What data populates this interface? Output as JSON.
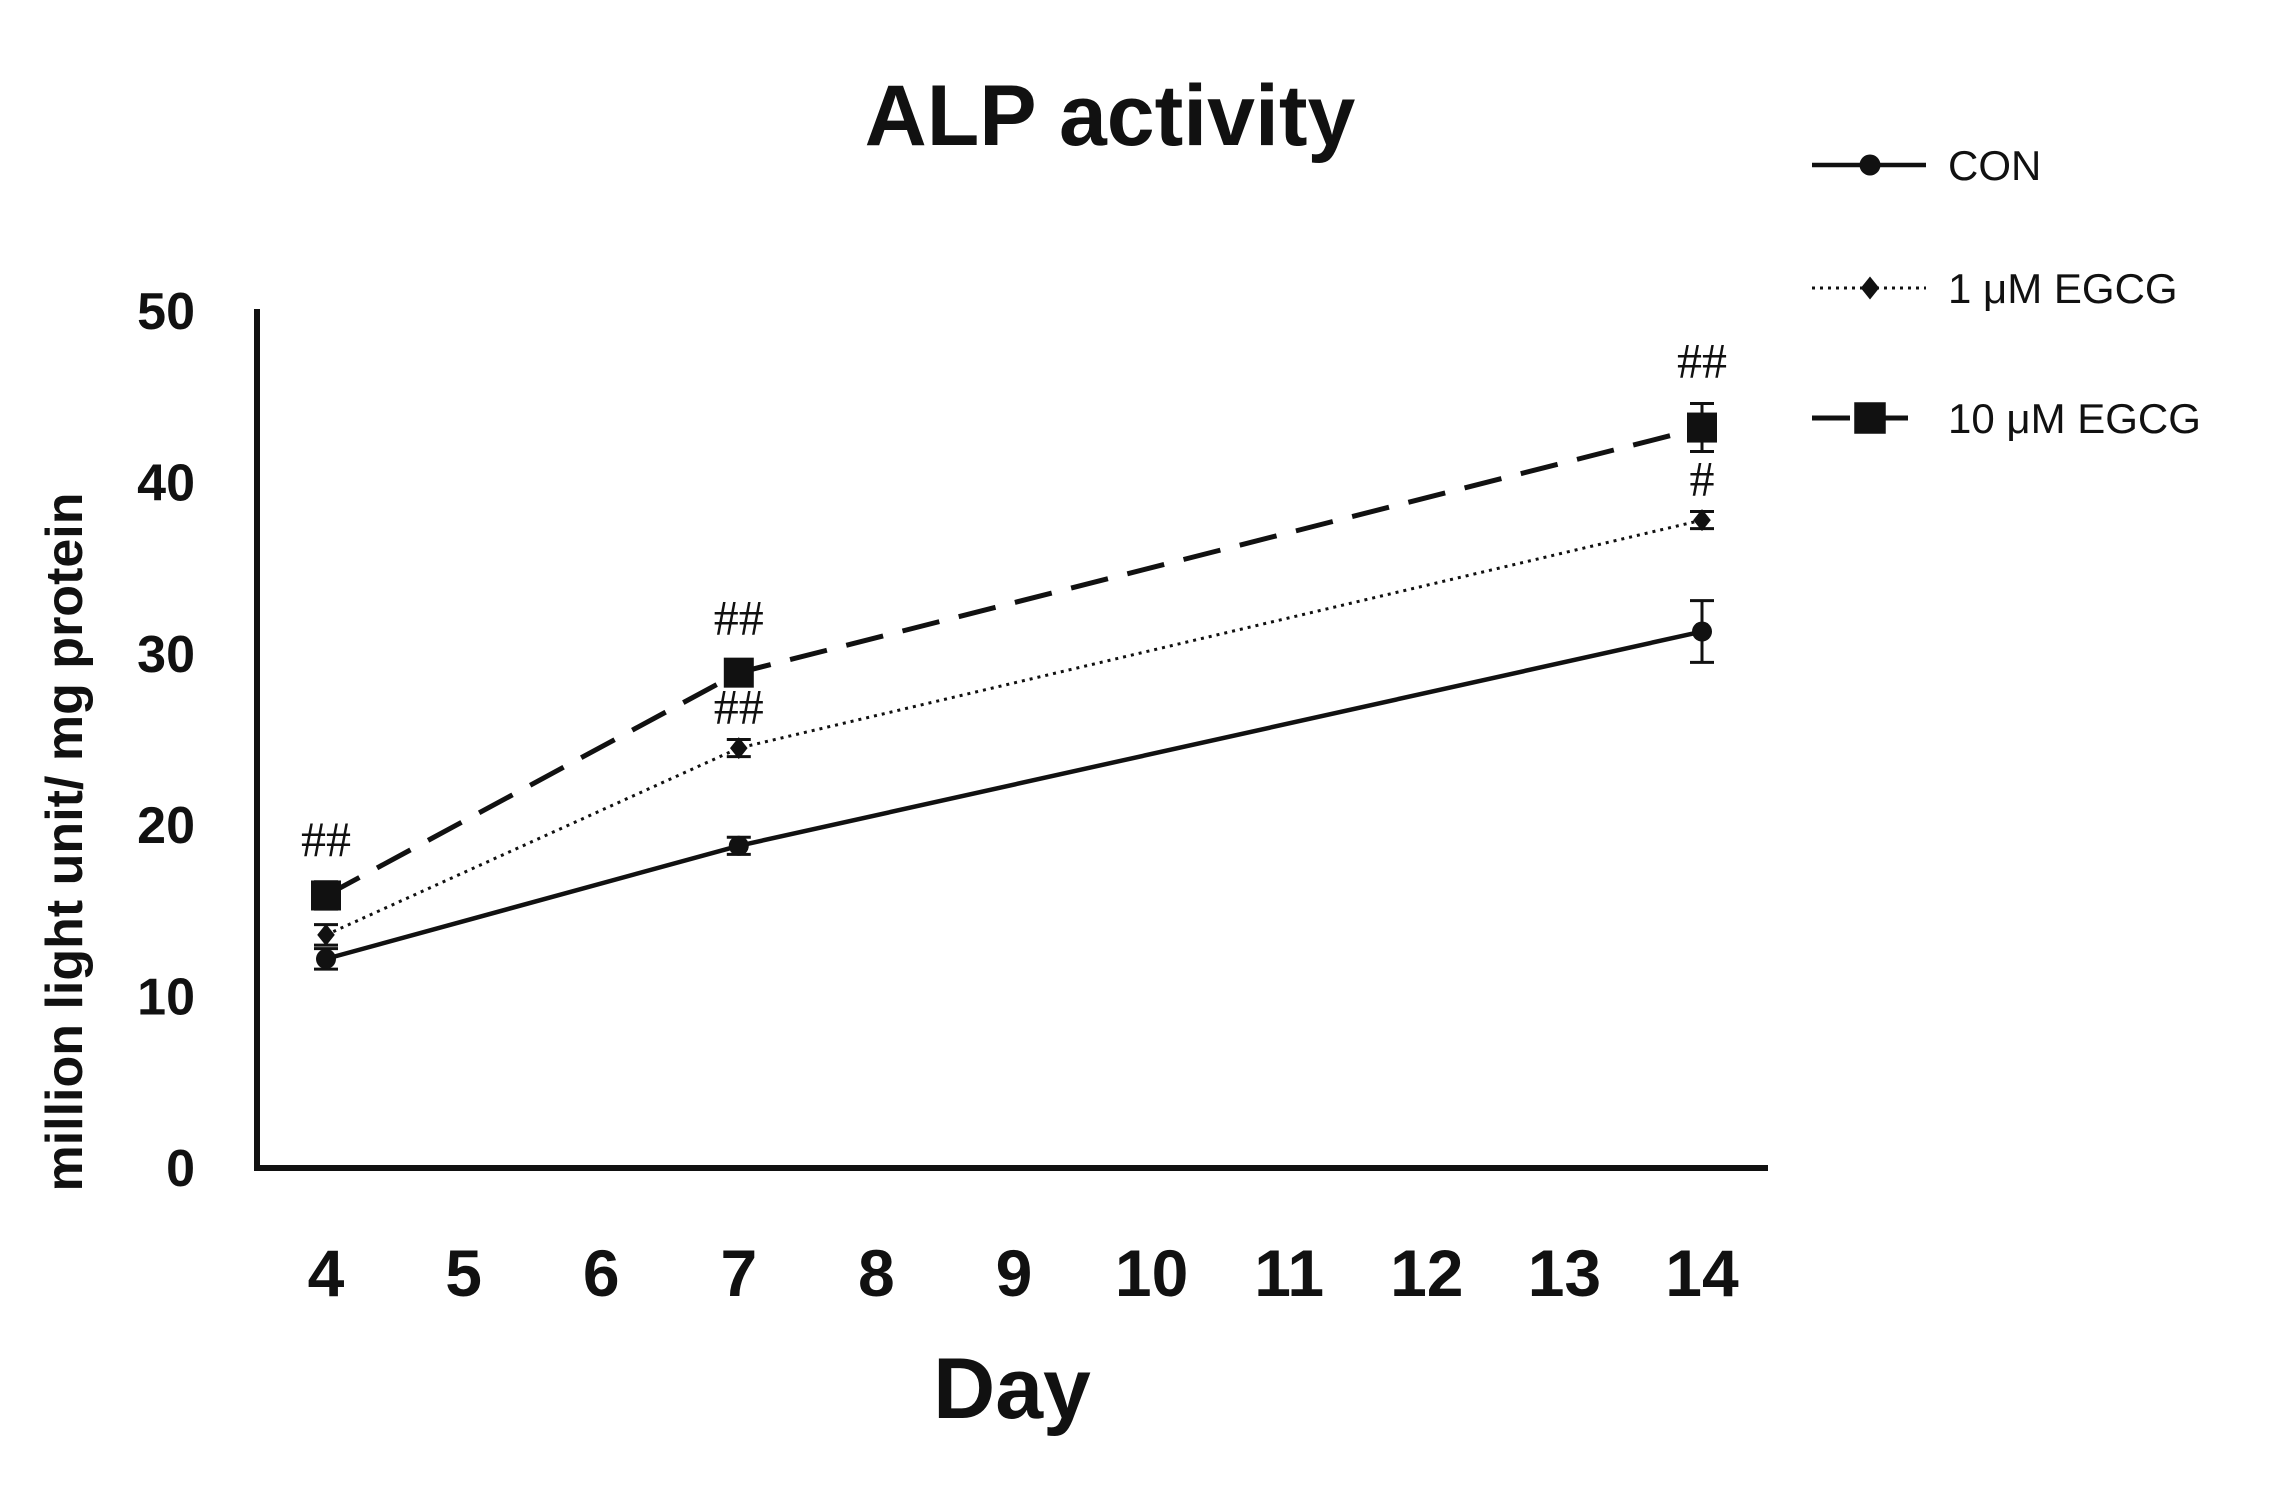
{
  "chart_data": {
    "type": "line",
    "title": "ALP activity",
    "xlabel": "Day",
    "ylabel": "million light unit/ mg protein",
    "x_ticks": [
      "4",
      "5",
      "6",
      "7",
      "8",
      "9",
      "10",
      "11",
      "12",
      "13",
      "14"
    ],
    "y_ticks": [
      "0",
      "10",
      "20",
      "30",
      "40",
      "50"
    ],
    "xlim": [
      4,
      14
    ],
    "ylim": [
      0,
      50
    ],
    "grid": false,
    "legend_position": "top-right outside",
    "x": [
      4,
      7,
      14
    ],
    "series": [
      {
        "name": "CON",
        "style": "solid",
        "marker": "circle",
        "values": [
          12.2,
          18.8,
          31.3
        ],
        "errors": [
          0.6,
          0.5,
          1.8
        ],
        "annotations": [
          "",
          "",
          ""
        ]
      },
      {
        "name": "1 μM EGCG",
        "style": "dotted",
        "marker": "diamond",
        "values": [
          13.6,
          24.5,
          37.8
        ],
        "errors": [
          0.6,
          0.5,
          0.5
        ],
        "annotations": [
          "",
          "##",
          "#"
        ]
      },
      {
        "name": "10 μM EGCG",
        "style": "dashed",
        "marker": "square",
        "values": [
          15.9,
          28.9,
          43.2
        ],
        "errors": [
          0.8,
          0.7,
          1.4
        ],
        "annotations": [
          "##",
          "##",
          "##"
        ]
      }
    ],
    "colors": {
      "line": "#111111",
      "background": "#ffffff"
    }
  }
}
